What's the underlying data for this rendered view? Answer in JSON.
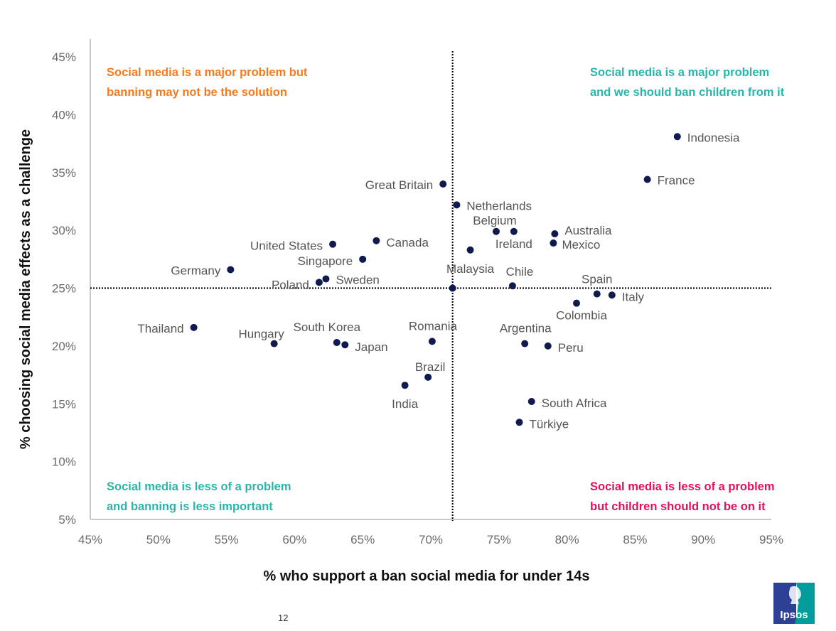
{
  "page_number": "12",
  "logo": {
    "text": "Ipsos",
    "colors": {
      "left": "#2E3F96",
      "right": "#009D9C"
    }
  },
  "colors": {
    "point": "#0F1A4F",
    "axis": "#C8C8C8",
    "reference_line": "#111111",
    "quadrant_top_left": "#F47A20",
    "quadrant_top_right": "#2BB5AA",
    "quadrant_bottom_left": "#2BB5AA",
    "quadrant_bottom_right": "#E5105E"
  },
  "chart_data": {
    "type": "scatter",
    "title": "",
    "xlabel": "% who support a ban social media for under 14s",
    "ylabel": "% choosing social media effects as a challenge",
    "xlim": [
      45,
      95
    ],
    "ylim": [
      5,
      45
    ],
    "xticks": [
      "45%",
      "50%",
      "55%",
      "60%",
      "65%",
      "70%",
      "75%",
      "80%",
      "85%",
      "90%",
      "95%"
    ],
    "yticks": [
      "5%",
      "10%",
      "15%",
      "20%",
      "25%",
      "30%",
      "35%",
      "40%",
      "45%"
    ],
    "grid": false,
    "reference_lines": {
      "x": 71.6,
      "y": 25,
      "style": "dotted"
    },
    "average_point": {
      "x": 71.6,
      "y": 25
    },
    "quadrant_labels": {
      "top_left": [
        "Social media is a major problem but",
        "banning may not be the solution"
      ],
      "top_right": [
        "Social media is a major problem",
        "and we should ban children from it"
      ],
      "bottom_left": [
        "Social media is less of a problem",
        "and banning is less important"
      ],
      "bottom_right": [
        "Social media is less of a problem",
        "but children should not be on it"
      ]
    },
    "points": [
      {
        "name": "Indonesia",
        "x": 88.1,
        "y": 38.1
      },
      {
        "name": "France",
        "x": 85.9,
        "y": 34.4
      },
      {
        "name": "Great Britain",
        "x": 70.9,
        "y": 34.0
      },
      {
        "name": "Netherlands",
        "x": 71.9,
        "y": 32.2
      },
      {
        "name": "Belgium",
        "x": 74.8,
        "y": 29.9
      },
      {
        "name": "Ireland",
        "x": 76.1,
        "y": 29.9
      },
      {
        "name": "Australia",
        "x": 79.1,
        "y": 29.7
      },
      {
        "name": "Mexico",
        "x": 79.0,
        "y": 28.9
      },
      {
        "name": "Malaysia",
        "x": 72.9,
        "y": 28.3
      },
      {
        "name": "Canada",
        "x": 66.0,
        "y": 29.1
      },
      {
        "name": "United States",
        "x": 62.8,
        "y": 28.8
      },
      {
        "name": "Singapore",
        "x": 65.0,
        "y": 27.5
      },
      {
        "name": "Germany",
        "x": 55.3,
        "y": 26.6
      },
      {
        "name": "Poland",
        "x": 61.8,
        "y": 25.5
      },
      {
        "name": "Sweden",
        "x": 62.3,
        "y": 25.8
      },
      {
        "name": "Chile",
        "x": 76.0,
        "y": 25.2
      },
      {
        "name": "Spain",
        "x": 82.2,
        "y": 24.5
      },
      {
        "name": "Italy",
        "x": 83.3,
        "y": 24.4
      },
      {
        "name": "Colombia",
        "x": 80.7,
        "y": 23.7
      },
      {
        "name": "Thailand",
        "x": 52.6,
        "y": 21.6
      },
      {
        "name": "Hungary",
        "x": 58.5,
        "y": 20.2
      },
      {
        "name": "South Korea",
        "x": 63.1,
        "y": 20.3
      },
      {
        "name": "Japan",
        "x": 63.7,
        "y": 20.1
      },
      {
        "name": "Romania",
        "x": 70.1,
        "y": 20.4
      },
      {
        "name": "Argentina",
        "x": 76.9,
        "y": 20.2
      },
      {
        "name": "Peru",
        "x": 78.6,
        "y": 20.0
      },
      {
        "name": "Brazil",
        "x": 69.8,
        "y": 17.3
      },
      {
        "name": "India",
        "x": 68.1,
        "y": 16.6
      },
      {
        "name": "South Africa",
        "x": 77.4,
        "y": 15.2
      },
      {
        "name": "Türkiye",
        "x": 76.5,
        "y": 13.4
      }
    ]
  }
}
